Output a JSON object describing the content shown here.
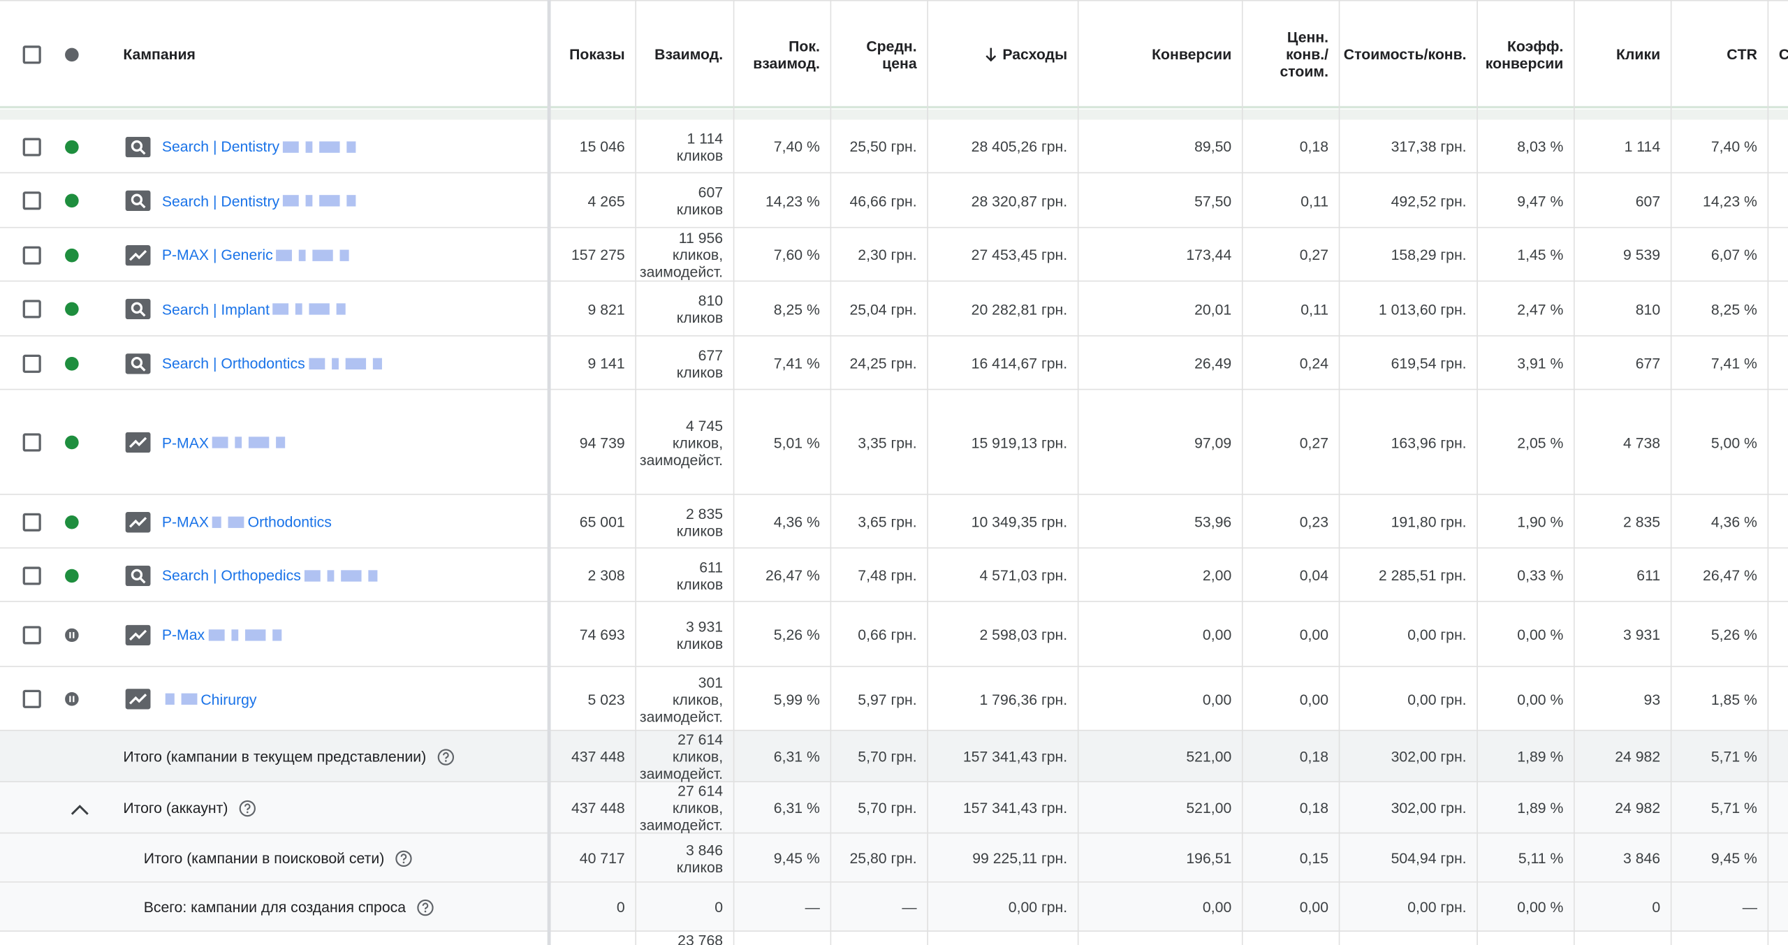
{
  "header": {
    "columns": [
      [
        "Кампания"
      ],
      [
        "Показы"
      ],
      [
        "Взаимод."
      ],
      [
        "Пок.",
        "взаимод."
      ],
      [
        "Средн.",
        "цена"
      ],
      [
        "Расходы"
      ],
      [
        "Конверсии"
      ],
      [
        "Ценн.",
        "конв./",
        "стоим."
      ],
      [
        "Стоимость/конв."
      ],
      [
        "Коэфф.",
        "конверсии"
      ],
      [
        "Клики"
      ],
      [
        "CTR"
      ],
      [
        "С"
      ]
    ]
  },
  "rows": [
    {
      "name_parts": [
        "Search | Dentistry"
      ],
      "type": "search",
      "status": "enabled",
      "cells": [
        "15 046",
        [
          "1 114",
          "кликов"
        ],
        "7,40 %",
        "25,50 грн.",
        "28 405,26 грн.",
        "89,50",
        "0,18",
        "317,38 грн.",
        "8,03 %",
        "1 114",
        "7,40 %"
      ]
    },
    {
      "name_parts": [
        "Search | Dentistry"
      ],
      "type": "search",
      "status": "enabled",
      "cells": [
        "4 265",
        [
          "607",
          "кликов"
        ],
        "14,23 %",
        "46,66 грн.",
        "28 320,87 грн.",
        "57,50",
        "0,11",
        "492,52 грн.",
        "9,47 %",
        "607",
        "14,23 %"
      ]
    },
    {
      "name_parts": [
        "P-MAX | Generic"
      ],
      "type": "pmax",
      "status": "enabled",
      "cells": [
        "157 275",
        [
          "11 956",
          "кликов,",
          "заимодейст."
        ],
        "7,60 %",
        "2,30 грн.",
        "27 453,45 грн.",
        "173,44",
        "0,27",
        "158,29 грн.",
        "1,45 %",
        "9 539",
        "6,07 %"
      ]
    },
    {
      "name_parts": [
        "Search | Implant"
      ],
      "type": "search",
      "status": "enabled",
      "cells": [
        "9 821",
        [
          "810",
          "кликов"
        ],
        "8,25 %",
        "25,04 грн.",
        "20 282,81 грн.",
        "20,01",
        "0,11",
        "1 013,60 грн.",
        "2,47 %",
        "810",
        "8,25 %"
      ]
    },
    {
      "name_parts": [
        "Search | Orthodontics"
      ],
      "type": "search",
      "status": "enabled",
      "cells": [
        "9 141",
        [
          "677",
          "кликов"
        ],
        "7,41 %",
        "24,25 грн.",
        "16 414,67 грн.",
        "26,49",
        "0,24",
        "619,54 грн.",
        "3,91 %",
        "677",
        "7,41 %"
      ]
    },
    {
      "name_parts": [
        "P-MAX"
      ],
      "type": "pmax",
      "status": "enabled",
      "cells": [
        "94 739",
        [
          "4 745",
          "кликов,",
          "заимодейст."
        ],
        "5,01 %",
        "3,35 грн.",
        "15 919,13 грн.",
        "97,09",
        "0,27",
        "163,96 грн.",
        "2,05 %",
        "4 738",
        "5,00 %"
      ]
    },
    {
      "name_parts": [
        "P-MAX",
        "Orthodontics"
      ],
      "type": "pmax",
      "status": "enabled",
      "cells": [
        "65 001",
        [
          "2 835",
          "кликов"
        ],
        "4,36 %",
        "3,65 грн.",
        "10 349,35 грн.",
        "53,96",
        "0,23",
        "191,80 грн.",
        "1,90 %",
        "2 835",
        "4,36 %"
      ]
    },
    {
      "name_parts": [
        "Search | Orthopedics"
      ],
      "type": "search",
      "status": "enabled",
      "cells": [
        "2 308",
        [
          "611",
          "кликов"
        ],
        "26,47 %",
        "7,48 грн.",
        "4 571,03 грн.",
        "2,00",
        "0,04",
        "2 285,51 грн.",
        "0,33 %",
        "611",
        "26,47 %"
      ]
    },
    {
      "name_parts": [
        "P-Max"
      ],
      "type": "pmax",
      "status": "paused",
      "cells": [
        "74 693",
        [
          "3 931",
          "кликов"
        ],
        "5,26 %",
        "0,66 грн.",
        "2 598,03 грн.",
        "0,00",
        "0,00",
        "0,00 грн.",
        "0,00 %",
        "3 931",
        "5,26 %"
      ]
    },
    {
      "name_parts": [
        "Chirurgy"
      ],
      "type": "pmax",
      "status": "paused",
      "cells": [
        "5 023",
        [
          "301",
          "кликов,",
          "заимодейст."
        ],
        "5,99 %",
        "5,97 грн.",
        "1 796,36 грн.",
        "0,00",
        "0,00",
        "0,00 грн.",
        "0,00 %",
        "93",
        "1,85 %"
      ]
    }
  ],
  "totals": [
    {
      "label": "Итого (кампании в текущем представлении)",
      "cells": [
        "437 448",
        [
          "27 614",
          "кликов,",
          "заимодейст."
        ],
        "6,31 %",
        "5,70 грн.",
        "157 341,43 грн.",
        "521,00",
        "0,18",
        "302,00 грн.",
        "1,89 %",
        "24 982",
        "5,71 %"
      ]
    },
    {
      "label": "Итого (аккаунт)",
      "cells": [
        "437 448",
        [
          "27 614",
          "кликов,",
          "заимодейст."
        ],
        "6,31 %",
        "5,70 грн.",
        "157 341,43 грн.",
        "521,00",
        "0,18",
        "302,00 грн.",
        "1,89 %",
        "24 982",
        "5,71 %"
      ]
    },
    {
      "label": "Итого (кампании в поисковой сети)",
      "cells": [
        "40 717",
        [
          "3 846",
          "кликов"
        ],
        "9,45 %",
        "25,80 грн.",
        "99 225,11 грн.",
        "196,51",
        "0,15",
        "504,94 грн.",
        "5,11 %",
        "3 846",
        "9,45 %"
      ]
    },
    {
      "label": "Всего: кампании для создания спроса",
      "cells": [
        "0",
        "0",
        "—",
        "—",
        "0,00 грн.",
        "0,00",
        "0,00",
        "0,00 грн.",
        "0,00 %",
        "0",
        "—"
      ]
    }
  ],
  "partial_row": {
    "interactions": "23 768"
  }
}
